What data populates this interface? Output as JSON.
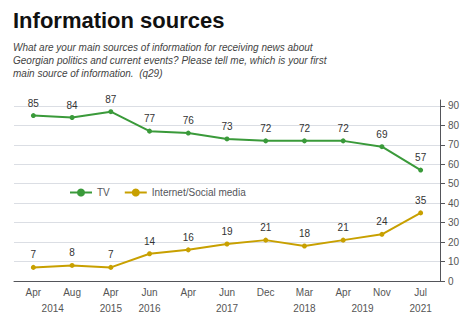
{
  "chart_data": {
    "type": "line",
    "title": "Information sources",
    "subtitle": "What are your main sources of information for receiving news about\nGeorgian politics and current events? Please tell me, which is your first\nmain source of information.  (q29)",
    "categories": [
      "Apr",
      "Aug",
      "Apr",
      "Jun",
      "Apr",
      "Jun",
      "Dec",
      "Mar",
      "Apr",
      "Nov",
      "Jul"
    ],
    "x_years": [
      "2014",
      "2014",
      "2015",
      "2016",
      "2017",
      "2017",
      "2017",
      "2018",
      "2019",
      "2019",
      "2021"
    ],
    "series": [
      {
        "name": "TV",
        "color": "#3a9a3a",
        "marker": "circle",
        "values": [
          85,
          84,
          87,
          77,
          76,
          73,
          72,
          72,
          72,
          69,
          57
        ]
      },
      {
        "name": "Internet/Social media",
        "color": "#c8a000",
        "marker": "circle",
        "values": [
          7,
          8,
          7,
          14,
          16,
          19,
          21,
          18,
          21,
          24,
          35
        ]
      }
    ],
    "ylim": [
      0,
      93
    ],
    "yticks": [
      0,
      10,
      20,
      30,
      40,
      50,
      60,
      70,
      80,
      90
    ],
    "grid": true,
    "legend": "center left",
    "data_labels": true
  }
}
